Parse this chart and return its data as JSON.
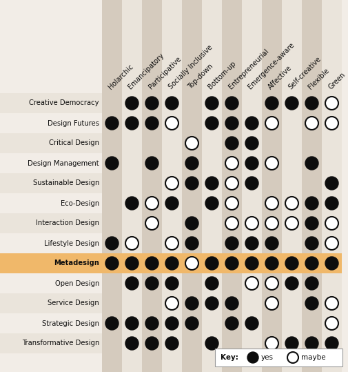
{
  "columns": [
    "Holarchic",
    "Emancipatory",
    "Participative",
    "Socially Inclusive",
    "Top-down",
    "Bottom-up",
    "Entrepreneurial",
    "Emergence-aware",
    "Affective",
    "Self-creative",
    "Flexible",
    "Green"
  ],
  "rows": [
    "Creative Democracy",
    "Design Futures",
    "Critical Design",
    "Design Management",
    "Sustainable Design",
    "Eco-Design",
    "Interaction Design",
    "Lifestyle Design",
    "Metadesign",
    "Open Design",
    "Service Design",
    "Strategic Design",
    "Transformative Design"
  ],
  "data": {
    "Creative Democracy": [
      null,
      "yes",
      "yes",
      "yes",
      null,
      "yes",
      "yes",
      null,
      "yes",
      "yes",
      "yes",
      "maybe"
    ],
    "Design Futures": [
      "yes",
      "yes",
      "yes",
      "maybe",
      null,
      "yes",
      "yes",
      "yes",
      "maybe",
      null,
      "maybe",
      "maybe"
    ],
    "Critical Design": [
      null,
      null,
      null,
      null,
      "maybe",
      null,
      "yes",
      "yes",
      null,
      null,
      null,
      null
    ],
    "Design Management": [
      "yes",
      null,
      "yes",
      null,
      "yes",
      null,
      "maybe",
      "yes",
      "maybe",
      null,
      "yes",
      null
    ],
    "Sustainable Design": [
      null,
      null,
      null,
      "maybe",
      "yes",
      "yes",
      "maybe",
      "yes",
      null,
      null,
      null,
      "yes"
    ],
    "Eco-Design": [
      null,
      "yes",
      "maybe",
      "yes",
      null,
      "yes",
      "maybe",
      null,
      "maybe",
      "maybe",
      "yes",
      "yes"
    ],
    "Interaction Design": [
      null,
      null,
      "maybe",
      null,
      "yes",
      null,
      "maybe",
      "maybe",
      "maybe",
      "maybe",
      "yes",
      "maybe"
    ],
    "Lifestyle Design": [
      "yes",
      "maybe",
      null,
      "maybe",
      "yes",
      null,
      "yes",
      "yes",
      "yes",
      null,
      "yes",
      "maybe"
    ],
    "Metadesign": [
      "yes",
      "yes",
      "yes",
      "yes",
      "maybe",
      "yes",
      "yes",
      "yes",
      "yes",
      "yes",
      "yes",
      "yes"
    ],
    "Open Design": [
      null,
      "yes",
      "yes",
      "yes",
      null,
      "yes",
      null,
      "maybe",
      "maybe",
      "yes",
      "yes",
      null
    ],
    "Service Design": [
      null,
      null,
      null,
      "maybe",
      "yes",
      "yes",
      "yes",
      null,
      "maybe",
      null,
      "yes",
      "maybe"
    ],
    "Strategic Design": [
      "yes",
      "yes",
      "yes",
      "yes",
      "yes",
      null,
      "yes",
      "yes",
      null,
      null,
      null,
      "maybe"
    ],
    "Transformative Design": [
      null,
      "yes",
      "yes",
      "yes",
      null,
      "yes",
      null,
      null,
      "maybe",
      "yes",
      "yes",
      "yes"
    ]
  },
  "metadesign_row": "Metadesign",
  "col_bg_dark": "#d5cbbe",
  "col_bg_light": "#eae4db",
  "row_bg_alt": "#eae4db",
  "row_bg_norm": "#f2ede7",
  "metadesign_bg": "#f0b86a",
  "yes_color": "#0d0d0d",
  "maybe_color": "#ffffff",
  "circle_edge": "#0d0d0d",
  "text_color": "#0d0d0d",
  "label_area_bg": "#f2ede7"
}
